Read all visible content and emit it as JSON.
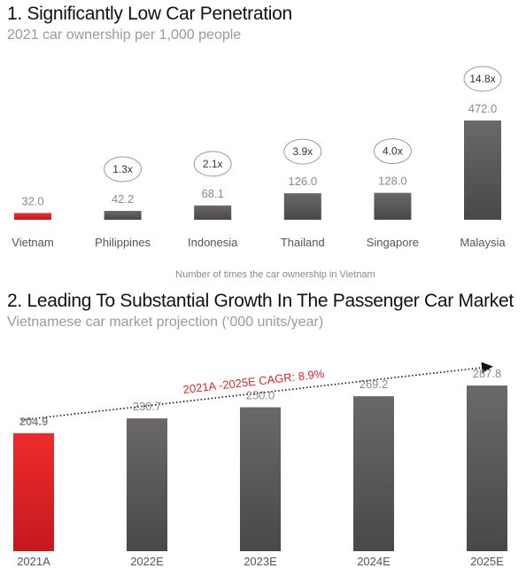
{
  "chart_data": [
    {
      "type": "bar",
      "title": "1. Significantly Low Car Penetration",
      "subtitle": "2021 car ownership per 1,000 people",
      "categories": [
        "Vietnam",
        "Philippines",
        "Indonesia",
        "Thailand",
        "Singapore",
        "Malaysia"
      ],
      "values": [
        32.0,
        42.2,
        68.1,
        126.0,
        128.0,
        472.0
      ],
      "value_labels": [
        "32.0",
        "42.2",
        "68.1",
        "126.0",
        "128.0",
        "472.0"
      ],
      "multipliers": [
        "",
        "1.3x",
        "2.1x",
        "3.9x",
        "4.0x",
        "14.8x"
      ],
      "footnote": "Number of times the car ownership in Vietnam",
      "highlight_color": "#e3262b",
      "bar_color": "#5a5758"
    },
    {
      "type": "bar",
      "title": "2. Leading To Substantial Growth In The Passenger Car Market",
      "subtitle": "Vietnamese car market projection (‘000 units/year)",
      "categories": [
        "2021A",
        "2022E",
        "2023E",
        "2024E",
        "2025E"
      ],
      "values": [
        204.9,
        230.7,
        250.0,
        269.2,
        287.8
      ],
      "value_labels": [
        "204.9",
        "230.7",
        "250.0",
        "269.2",
        "287.8"
      ],
      "annotation": "2021A -2025E CAGR: 8.9%",
      "highlight_color": "#e3262b",
      "bar_color": "#5a5758"
    }
  ]
}
